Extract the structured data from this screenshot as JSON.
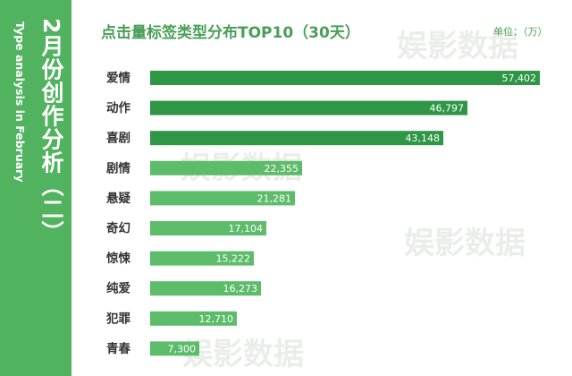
{
  "sidebar": {
    "title": "2月份创作分析（二）",
    "subtitle": "Type analysis in February"
  },
  "watermark": "娱影数据",
  "colors": {
    "sidebar": "#51b35f",
    "bar_dark": "#2e9645",
    "bar_light": "#5cbc6a",
    "title": "#4a9e57"
  },
  "chart_data": {
    "type": "bar",
    "orientation": "horizontal",
    "title": "点击量标签类型分布TOP10（30天）",
    "unit": "单位：（万）",
    "categories": [
      "爱情",
      "动作",
      "喜剧",
      "剧情",
      "悬疑",
      "奇幻",
      "惊悚",
      "纯爱",
      "犯罪",
      "青春"
    ],
    "values": [
      57402,
      46797,
      43148,
      22355,
      21281,
      17104,
      15222,
      16273,
      12710,
      7300
    ],
    "value_labels": [
      "57,402",
      "46,797",
      "43,148",
      "22,355",
      "21,281",
      "17,104",
      "15,222",
      "16,273",
      "12,710",
      "7,300"
    ],
    "grid": false,
    "legend": "none"
  }
}
